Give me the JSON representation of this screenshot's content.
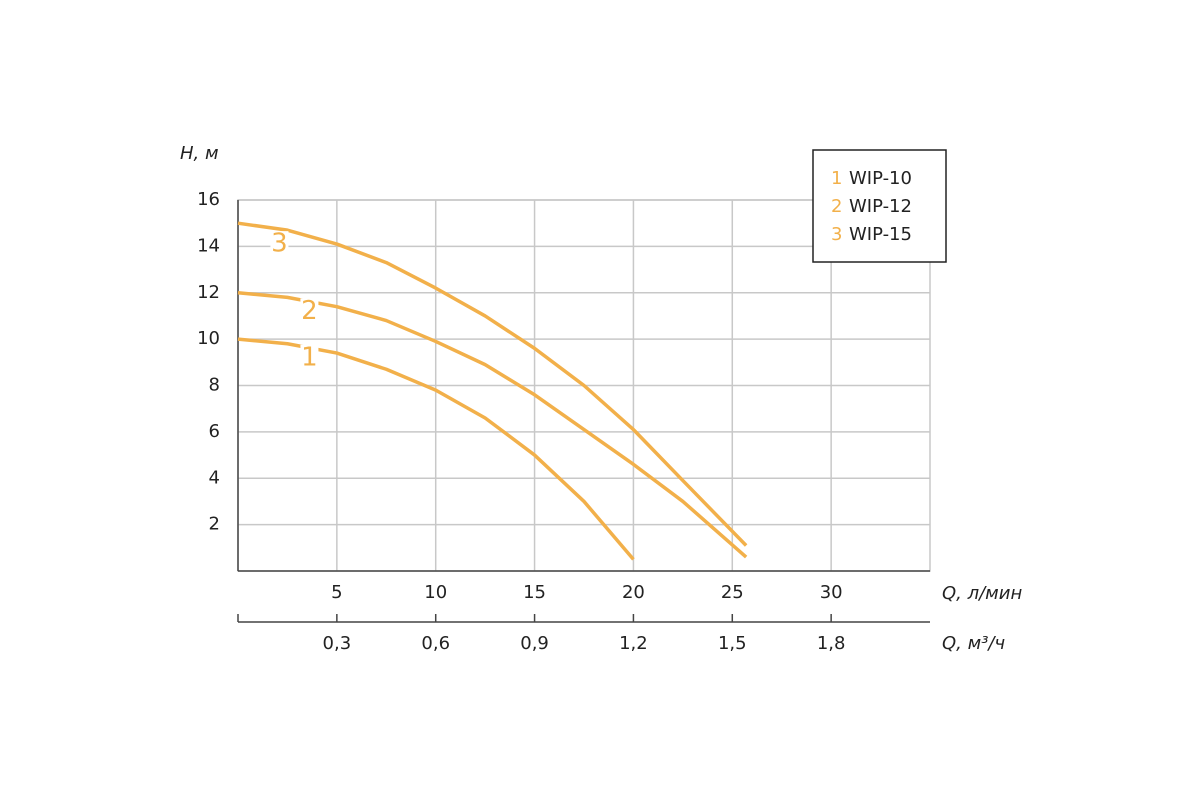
{
  "chart_data": {
    "type": "line",
    "y_label": "H, м",
    "x_label": "Q, л/мин",
    "x2_label": "Q, м³/ч",
    "x": [
      0,
      2.5,
      5,
      7.5,
      10,
      12.5,
      15,
      17.5,
      20,
      22.5,
      25.7
    ],
    "series": [
      {
        "name": "WIP-10",
        "label": "1",
        "color": "#f2b04a",
        "values": [
          10,
          9.8,
          9.4,
          8.7,
          7.8,
          6.6,
          5.0,
          3.0,
          0.5,
          null,
          null
        ]
      },
      {
        "name": "WIP-12",
        "label": "2",
        "color": "#f2b04a",
        "values": [
          12,
          11.8,
          11.4,
          10.8,
          9.9,
          8.9,
          7.6,
          6.1,
          4.6,
          3.0,
          0.6
        ]
      },
      {
        "name": "WIP-15",
        "label": "3",
        "color": "#f2b04a",
        "values": [
          15,
          14.7,
          14.1,
          13.3,
          12.2,
          11.0,
          9.6,
          8.0,
          6.1,
          3.9,
          1.1
        ]
      }
    ],
    "xlim": [
      0,
      35
    ],
    "xticks": [
      5,
      10,
      15,
      20,
      25,
      30
    ],
    "x2lim": [
      0,
      2.1
    ],
    "x2ticks": [
      {
        "value": 0.3,
        "label": "0,3"
      },
      {
        "value": 0.6,
        "label": "0,6"
      },
      {
        "value": 0.9,
        "label": "0,9"
      },
      {
        "value": 1.2,
        "label": "1,2"
      },
      {
        "value": 1.5,
        "label": "1,5"
      },
      {
        "value": 1.8,
        "label": "1,8"
      }
    ],
    "ylim": [
      0,
      16
    ],
    "yticks": [
      2,
      4,
      6,
      8,
      10,
      12,
      14,
      16
    ],
    "grid": true,
    "legend": "top-right"
  }
}
